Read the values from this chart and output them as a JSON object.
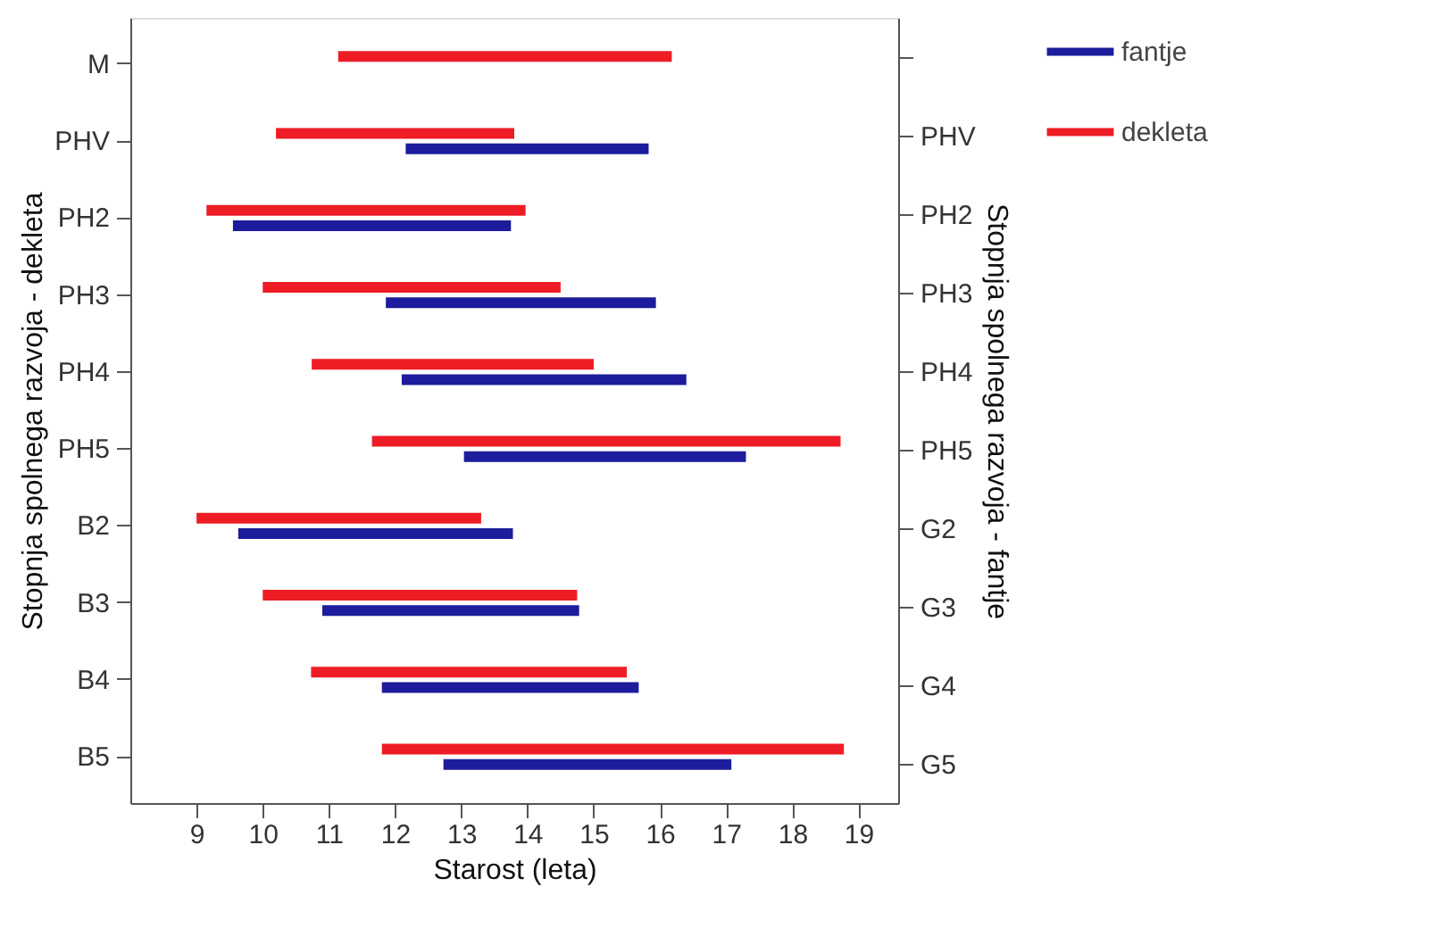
{
  "chart_data": {
    "type": "bar",
    "orientation": "horizontal",
    "xlabel": "Starost (leta)",
    "ylabel": "Stopnja spolnega razvoja - dekleta",
    "y2label": "Stopnja spolnega razvoja - fantje",
    "categories": [
      "M",
      "PHV",
      "PH2",
      "PH3",
      "PH4",
      "PH5",
      "B2",
      "B3",
      "B4",
      "B5"
    ],
    "y2_categories": [
      null,
      "PHV",
      "PH2",
      "PH3",
      "PH4",
      "PH5",
      "G2",
      "G3",
      "G4",
      "G5"
    ],
    "series": [
      {
        "name": "fantje",
        "color": "#1c1c9c",
        "base": [
          null,
          12.16,
          9.55,
          11.86,
          12.1,
          13.04,
          9.63,
          10.9,
          11.8,
          12.73
        ],
        "values": [
          null,
          3.67,
          4.2,
          4.08,
          4.3,
          4.26,
          4.15,
          3.88,
          3.88,
          4.35
        ]
      },
      {
        "name": "dekleta",
        "color": "#ee1c25",
        "base": [
          11.14,
          10.2,
          9.15,
          10.0,
          10.74,
          11.65,
          9.0,
          10.0,
          10.73,
          11.8
        ],
        "values": [
          5.04,
          3.6,
          4.82,
          4.5,
          4.26,
          7.08,
          4.3,
          4.75,
          4.77,
          6.98
        ]
      }
    ],
    "xlim": [
      8,
      19.6
    ],
    "xticks": [
      9,
      10,
      11,
      12,
      13,
      14,
      15,
      16,
      17,
      18,
      19
    ],
    "grid": false,
    "legend": "top right"
  }
}
